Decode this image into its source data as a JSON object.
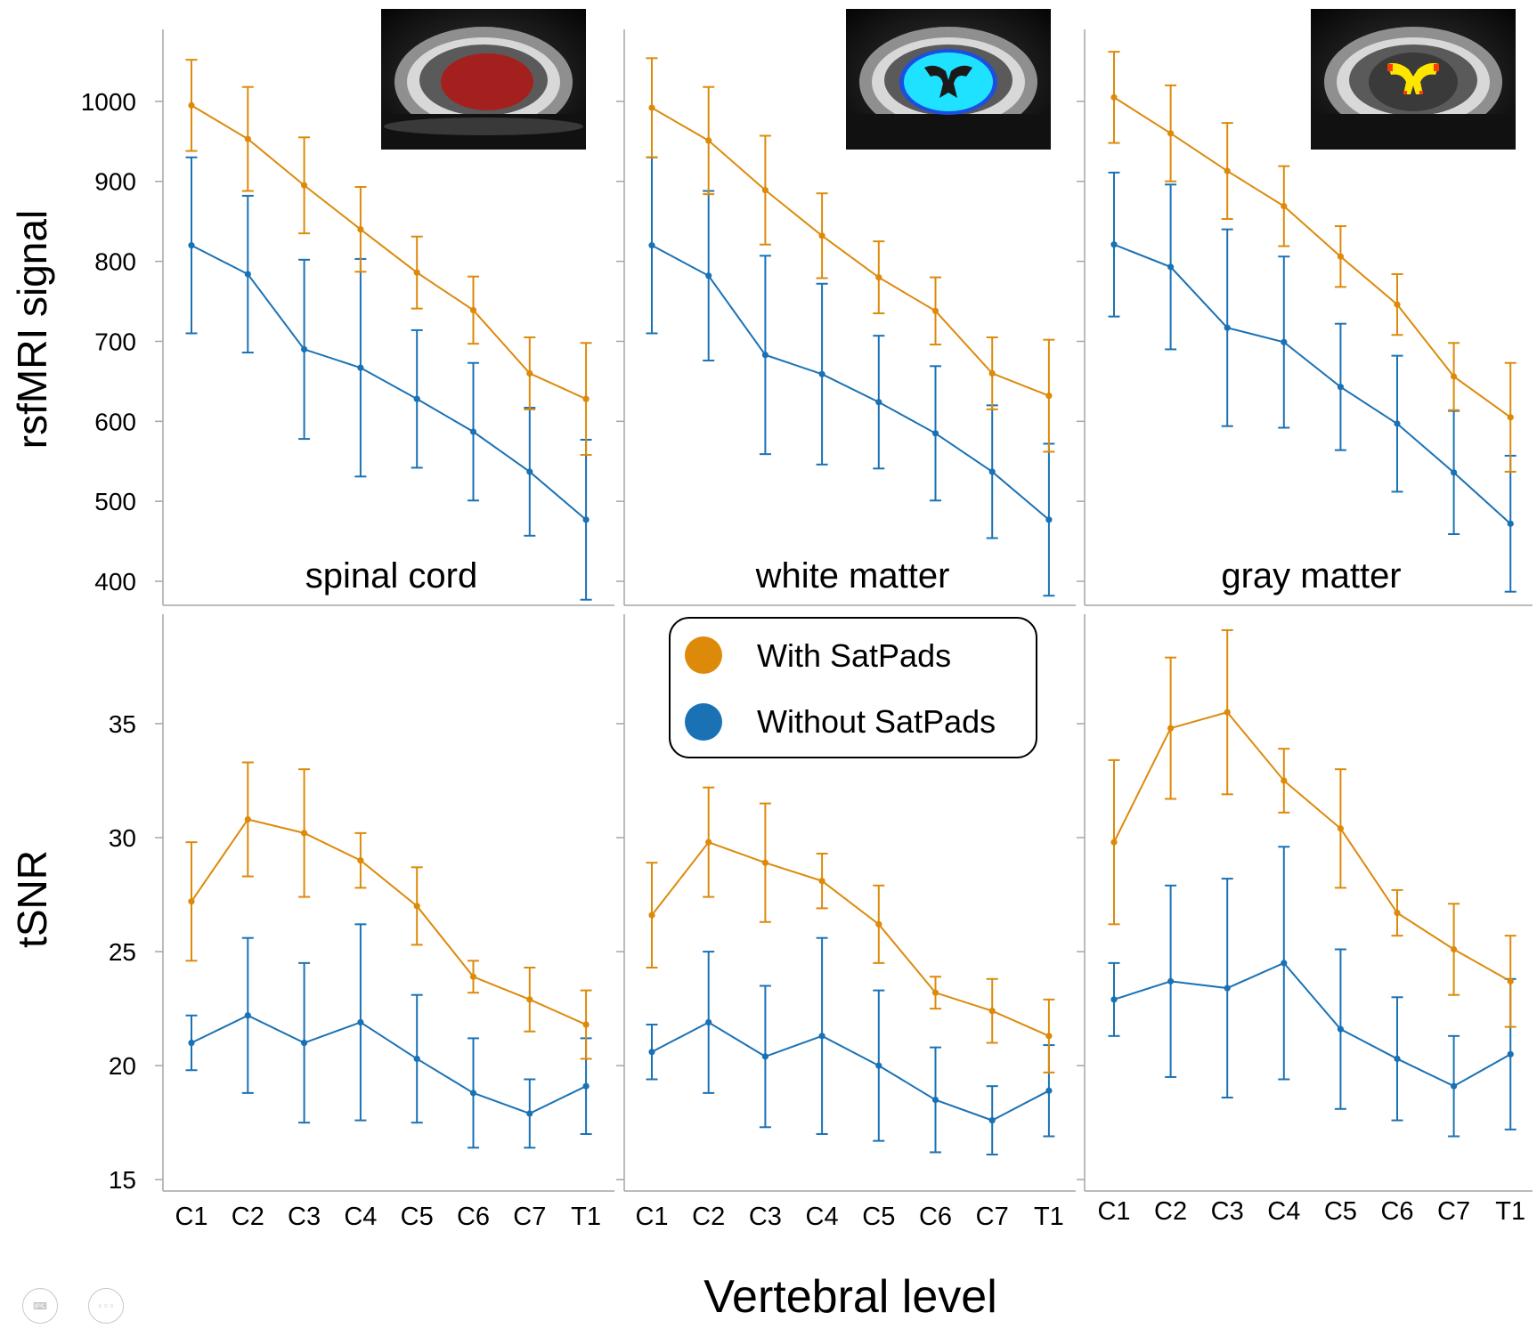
{
  "chart_data": {
    "type": "line",
    "categories": [
      "C1",
      "C2",
      "C3",
      "C4",
      "C5",
      "C6",
      "C7",
      "T1"
    ],
    "xlabel": "Vertebral level",
    "legend": {
      "position": "center",
      "entries": [
        {
          "name": "With SatPads",
          "color": "#dd8a0b"
        },
        {
          "name": "Without SatPads",
          "color": "#1a72b5"
        }
      ]
    },
    "rows": [
      {
        "ylabel": "rsfMRI signal",
        "ylim": [
          370,
          1090
        ],
        "yticks": [
          400,
          500,
          600,
          700,
          800,
          900,
          1000
        ],
        "panels": [
          {
            "label": "spinal cord",
            "mask": "red",
            "series": [
              {
                "name": "With SatPads",
                "values": [
                  995,
                  953,
                  895,
                  840,
                  786,
                  739,
                  660,
                  628
                ],
                "err": [
                  57,
                  65,
                  60,
                  53,
                  45,
                  42,
                  45,
                  70
                ]
              },
              {
                "name": "Without SatPads",
                "values": [
                  820,
                  784,
                  690,
                  667,
                  628,
                  587,
                  537,
                  477
                ],
                "err": [
                  110,
                  98,
                  112,
                  136,
                  86,
                  86,
                  80,
                  100
                ]
              }
            ]
          },
          {
            "label": "white matter",
            "mask": "cyan",
            "series": [
              {
                "name": "With SatPads",
                "values": [
                  992,
                  951,
                  889,
                  832,
                  780,
                  738,
                  660,
                  632
                ],
                "err": [
                  62,
                  67,
                  68,
                  53,
                  45,
                  42,
                  45,
                  70
                ]
              },
              {
                "name": "Without SatPads",
                "values": [
                  820,
                  782,
                  683,
                  659,
                  624,
                  585,
                  537,
                  477
                ],
                "err": [
                  110,
                  106,
                  124,
                  113,
                  83,
                  84,
                  83,
                  95
                ]
              }
            ]
          },
          {
            "label": "gray matter",
            "mask": "yellow",
            "series": [
              {
                "name": "With SatPads",
                "values": [
                  1005,
                  960,
                  913,
                  869,
                  806,
                  746,
                  656,
                  605
                ],
                "err": [
                  57,
                  60,
                  60,
                  50,
                  38,
                  38,
                  42,
                  68
                ]
              },
              {
                "name": "Without SatPads",
                "values": [
                  821,
                  793,
                  717,
                  699,
                  643,
                  597,
                  536,
                  472
                ],
                "err": [
                  90,
                  103,
                  123,
                  107,
                  79,
                  85,
                  77,
                  85
                ]
              }
            ]
          }
        ]
      },
      {
        "ylabel": "tSNR",
        "ylim": [
          14.5,
          39.8
        ],
        "yticks": [
          15,
          20,
          25,
          30,
          35
        ],
        "panels": [
          {
            "label": "",
            "series": [
              {
                "name": "With SatPads",
                "values": [
                  27.2,
                  30.8,
                  30.2,
                  29.0,
                  27.0,
                  23.9,
                  22.9,
                  21.8
                ],
                "err": [
                  2.6,
                  2.5,
                  2.8,
                  1.2,
                  1.7,
                  0.7,
                  1.4,
                  1.5
                ]
              },
              {
                "name": "Without SatPads",
                "values": [
                  21.0,
                  22.2,
                  21.0,
                  21.9,
                  20.3,
                  18.8,
                  17.9,
                  19.1
                ],
                "err": [
                  1.2,
                  3.4,
                  3.5,
                  4.3,
                  2.8,
                  2.4,
                  1.5,
                  2.1
                ]
              }
            ]
          },
          {
            "label": "",
            "series": [
              {
                "name": "With SatPads",
                "values": [
                  26.6,
                  29.8,
                  28.9,
                  28.1,
                  26.2,
                  23.2,
                  22.4,
                  21.3
                ],
                "err": [
                  2.3,
                  2.4,
                  2.6,
                  1.2,
                  1.7,
                  0.7,
                  1.4,
                  1.6
                ]
              },
              {
                "name": "Without SatPads",
                "values": [
                  20.6,
                  21.9,
                  20.4,
                  21.3,
                  20.0,
                  18.5,
                  17.6,
                  18.9
                ],
                "err": [
                  1.2,
                  3.1,
                  3.1,
                  4.3,
                  3.3,
                  2.3,
                  1.5,
                  2.0
                ]
              }
            ]
          },
          {
            "label": "",
            "series": [
              {
                "name": "With SatPads",
                "values": [
                  29.8,
                  34.8,
                  35.5,
                  32.5,
                  30.4,
                  26.7,
                  25.1,
                  23.7
                ],
                "err": [
                  3.6,
                  3.1,
                  3.6,
                  1.4,
                  2.6,
                  1.0,
                  2.0,
                  2.0
                ]
              },
              {
                "name": "Without SatPads",
                "values": [
                  22.9,
                  23.7,
                  23.4,
                  24.5,
                  21.6,
                  20.3,
                  19.1,
                  20.5
                ],
                "err": [
                  1.6,
                  4.2,
                  4.8,
                  5.1,
                  3.5,
                  2.7,
                  2.2,
                  3.3
                ]
              }
            ]
          }
        ]
      }
    ]
  },
  "controls": {
    "keyboard_icon": "keyboard-icon",
    "more_icon": "more-icon"
  }
}
